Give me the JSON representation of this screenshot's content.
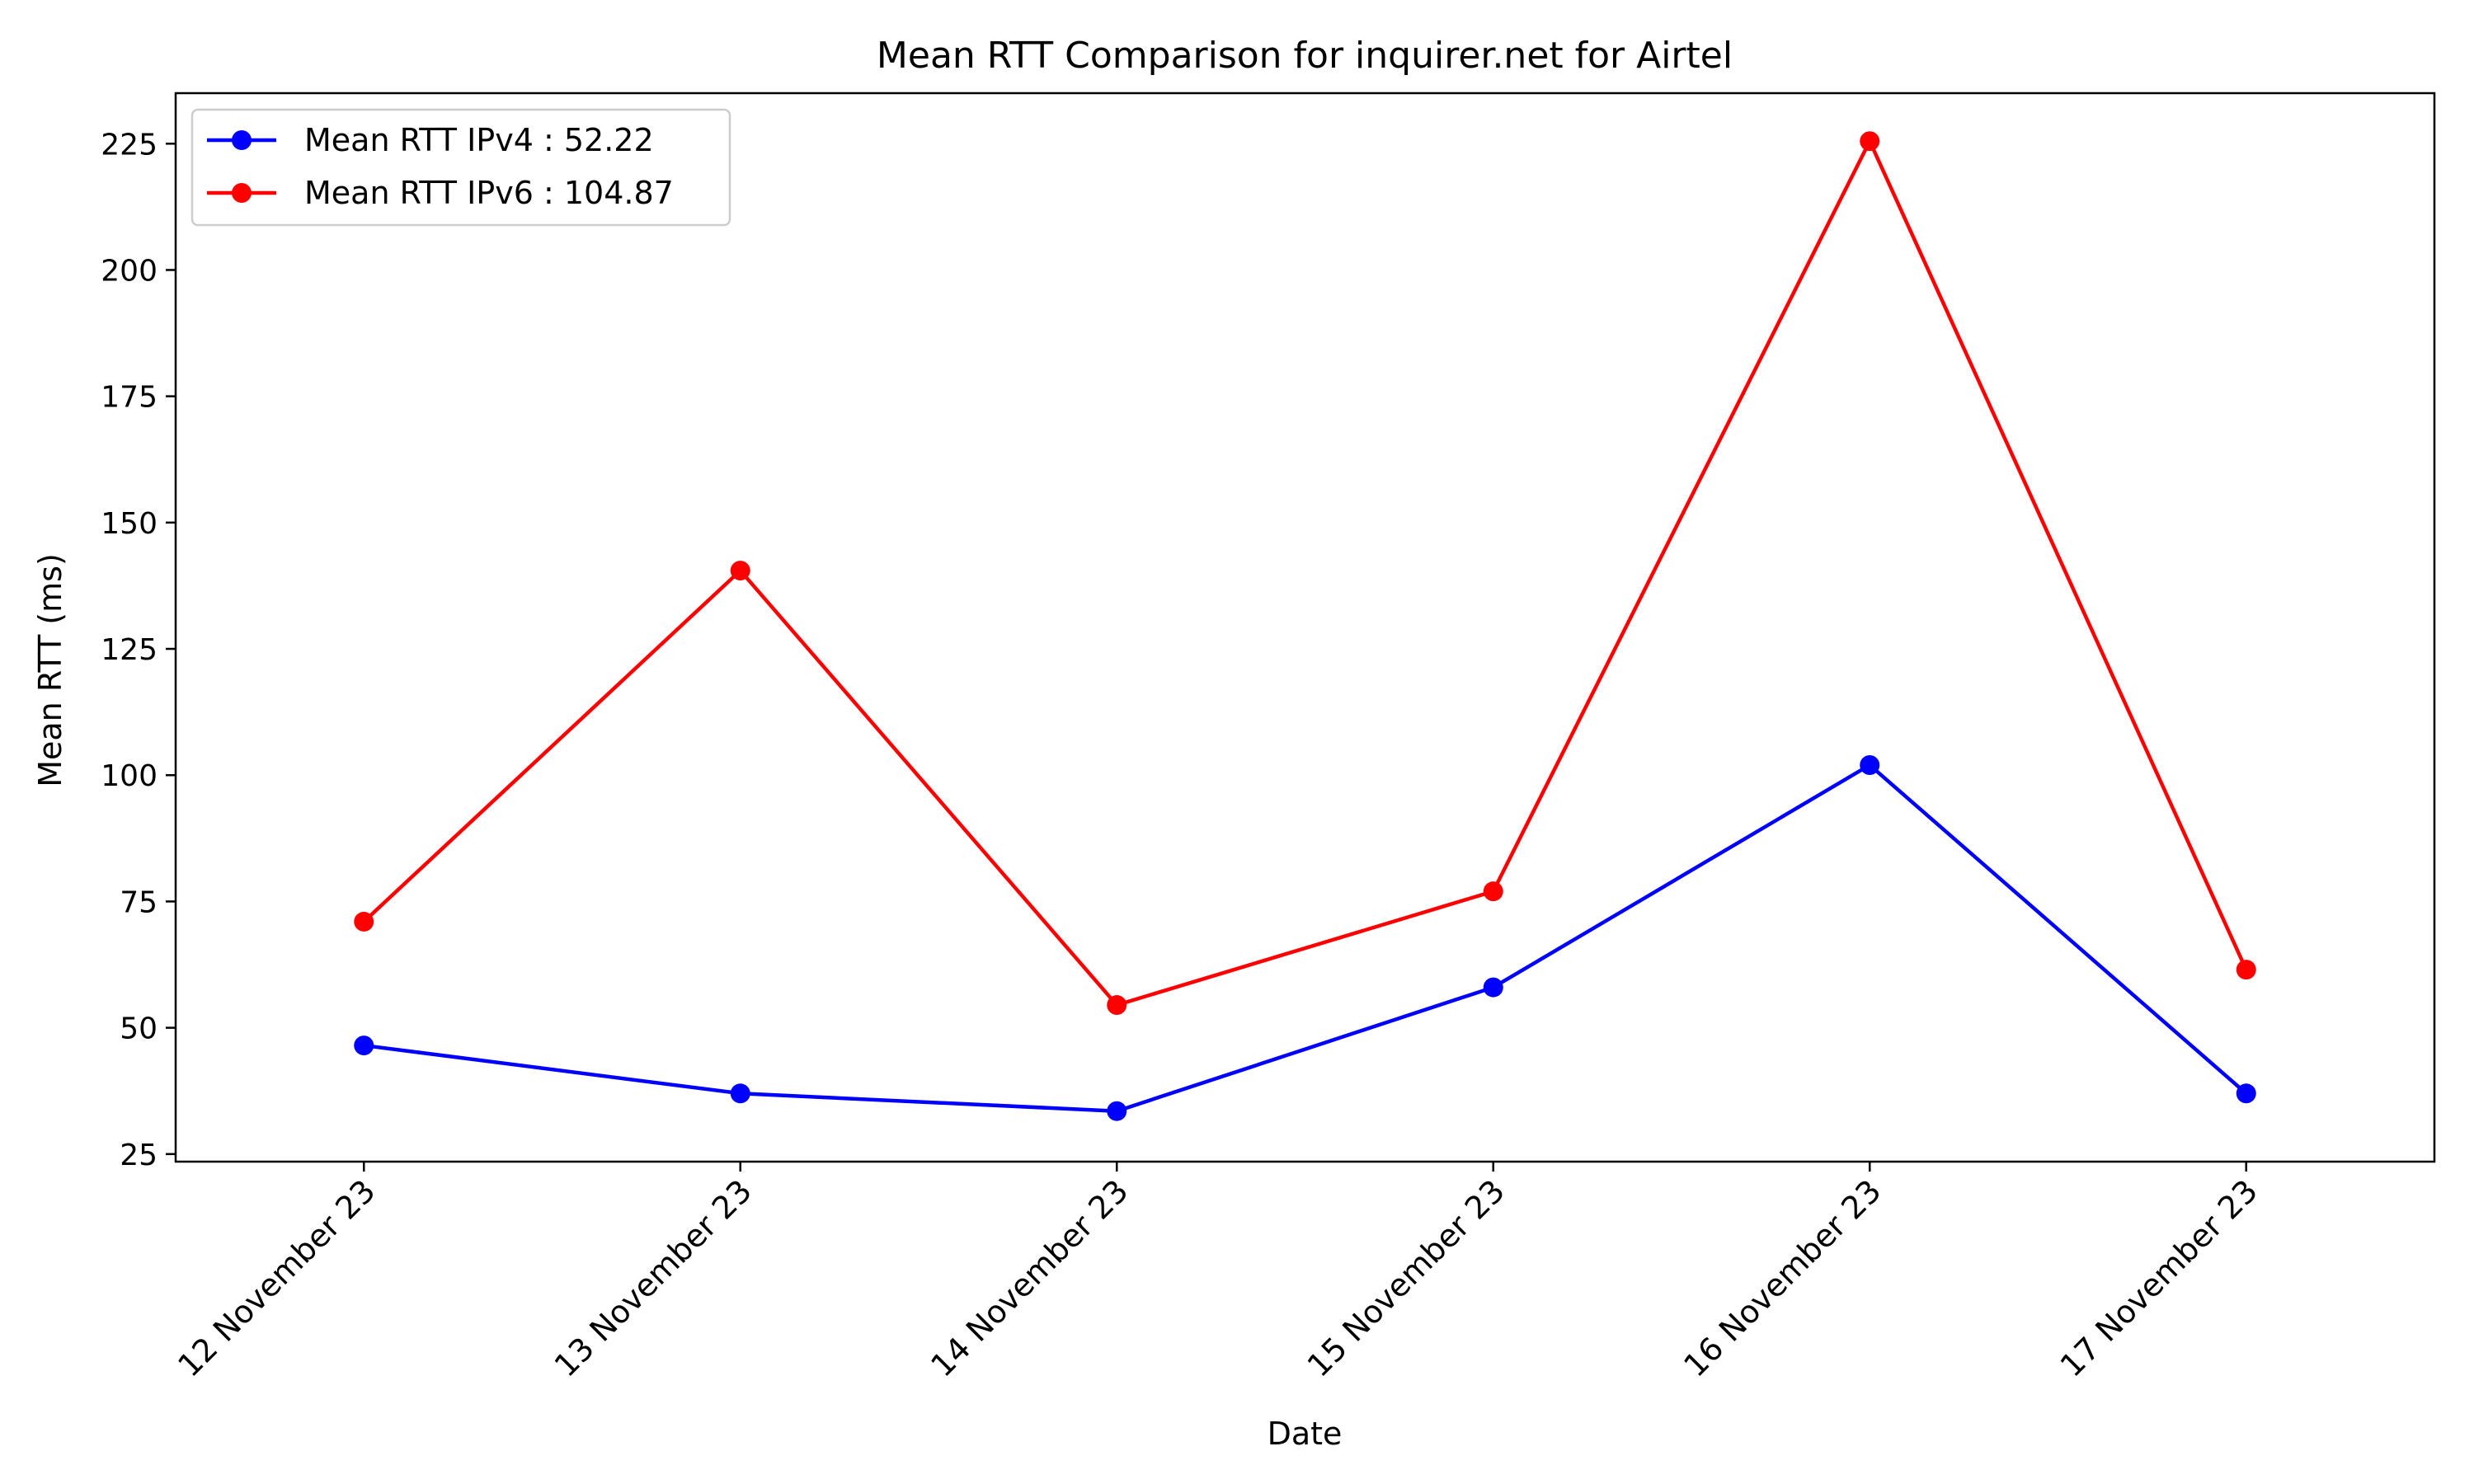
{
  "chart_data": {
    "type": "line",
    "title": "Mean RTT Comparison for inquirer.net for Airtel",
    "xlabel": "Date",
    "ylabel": "Mean RTT (ms)",
    "categories": [
      "12 November 23",
      "13 November 23",
      "14 November 23",
      "15 November 23",
      "16 November 23",
      "17 November 23"
    ],
    "series": [
      {
        "name": "Mean RTT IPv4 : 52.22",
        "color": "#0000ff",
        "marker": "circle",
        "values": [
          46.5,
          37.0,
          33.5,
          58.0,
          102.0,
          37.0
        ]
      },
      {
        "name": "Mean RTT IPv6 : 104.87",
        "color": "#ff0000",
        "marker": "circle",
        "values": [
          71.0,
          140.5,
          54.5,
          77.0,
          225.5,
          61.5
        ]
      }
    ],
    "ylim": [
      23.5,
      235
    ],
    "yticks": [
      25,
      50,
      75,
      100,
      125,
      150,
      175,
      200,
      225
    ],
    "xtick_rotation": 45,
    "grid": false,
    "legend_position": "top-left"
  }
}
